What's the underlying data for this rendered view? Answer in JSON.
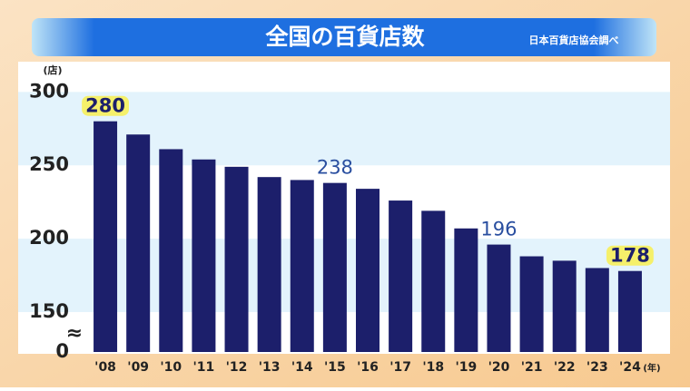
{
  "chart_data": {
    "type": "bar",
    "title": "全国の百貨店数",
    "source": "日本百貨店協会調べ",
    "y_unit": "(店)",
    "x_unit": "(年)",
    "categories": [
      "'08",
      "'09",
      "'10",
      "'11",
      "'12",
      "'13",
      "'14",
      "'15",
      "'16",
      "'17",
      "'18",
      "'19",
      "'20",
      "'21",
      "'22",
      "'23",
      "'24"
    ],
    "values": [
      280,
      271,
      261,
      254,
      249,
      242,
      240,
      238,
      234,
      226,
      219,
      207,
      196,
      188,
      185,
      180,
      178
    ],
    "color": "#1c1f6b",
    "labeled": [
      0,
      7,
      12,
      16
    ],
    "highlighted": [
      0,
      16
    ],
    "ylim": [
      0,
      320
    ],
    "axis_break": [
      0,
      150
    ],
    "yticks": [
      0,
      150,
      200,
      250,
      300
    ],
    "grid": true
  }
}
